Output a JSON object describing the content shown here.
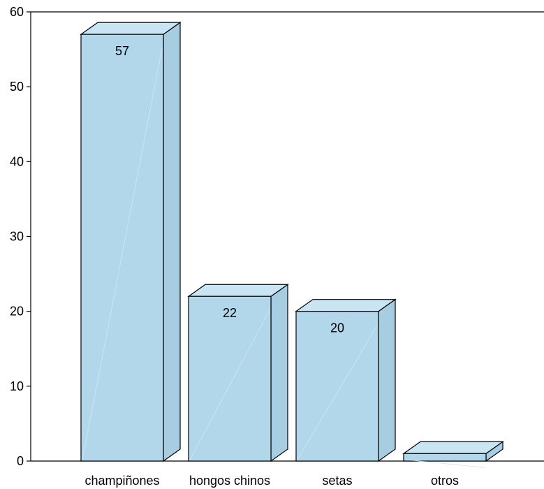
{
  "chart_data": {
    "type": "bar",
    "categories": [
      "champiñones",
      "hongos chinos",
      "setas",
      "otros"
    ],
    "values": [
      57,
      22,
      20,
      1
    ],
    "data_labels": [
      "57",
      "22",
      "20",
      ""
    ],
    "title": "",
    "xlabel": "",
    "ylabel": "",
    "ylim": [
      0,
      60
    ],
    "yticks": [
      0,
      10,
      20,
      30,
      40,
      50,
      60
    ],
    "grid": false,
    "style": "3d",
    "colors": {
      "front": "#b3d7ea",
      "top": "#c9e4f2",
      "side": "#a6cde2",
      "stroke": "#000000"
    }
  }
}
